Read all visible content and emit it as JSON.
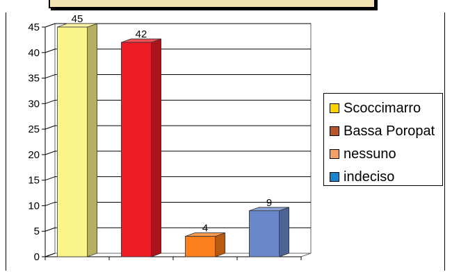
{
  "chart_data": {
    "type": "bar",
    "categories": [
      "Scoccimarro",
      "Bassa Poropat",
      "nessuno",
      "indeciso"
    ],
    "values": [
      45,
      42,
      4,
      9
    ],
    "colors": [
      "#fbf48a",
      "#ee1c24",
      "#fb7f1c",
      "#6a89cc"
    ],
    "legend_colors": [
      "#fdd300",
      "#b5562a",
      "#f4a068",
      "#1c82cc"
    ],
    "ylim": [
      0,
      45
    ],
    "yticks": [
      0,
      5,
      10,
      15,
      20,
      25,
      30,
      35,
      40,
      45
    ],
    "grid": true,
    "legend_position": "right",
    "title": "",
    "xlabel": "",
    "ylabel": ""
  },
  "legend": {
    "items": [
      "Scoccimarro",
      "Bassa Poropat",
      "nessuno",
      "indeciso"
    ]
  }
}
